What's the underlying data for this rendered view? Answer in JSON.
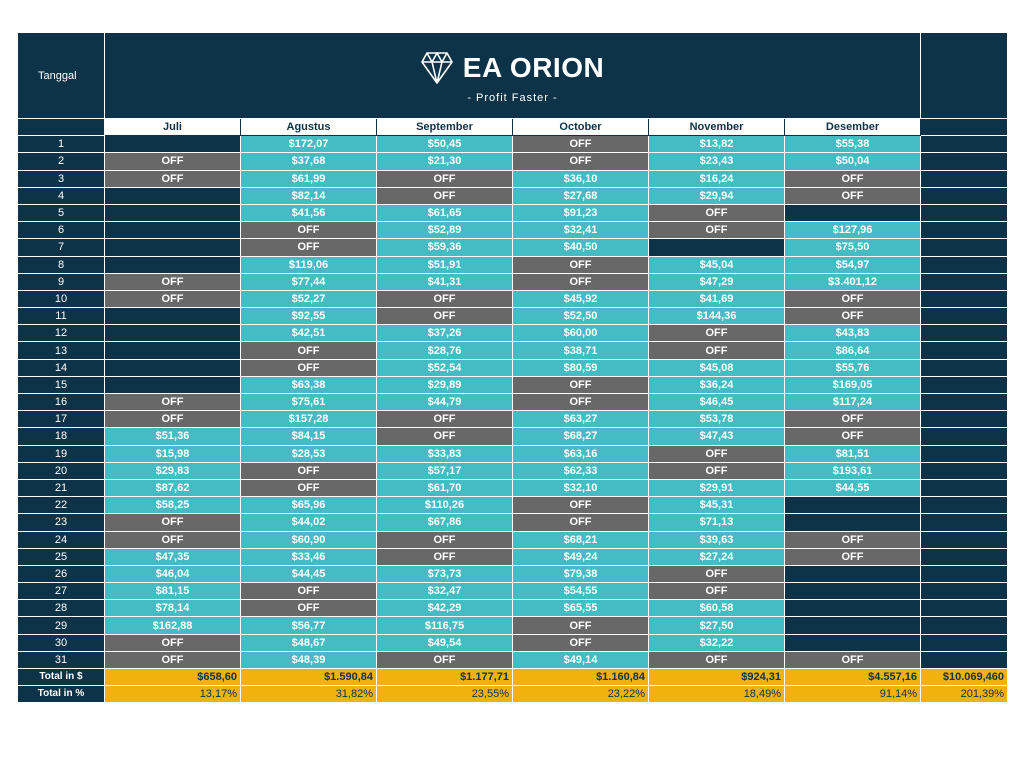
{
  "header": {
    "tanggal_label": "Tanggal",
    "brand": "EA ORION",
    "tagline": "- Profit Faster -",
    "logo_icon": "diamond-icon"
  },
  "months": [
    "Juli",
    "Agustus",
    "September",
    "October",
    "November",
    "Desember"
  ],
  "colors": {
    "navy": "#0d3349",
    "profit_cell": "#45bcc4",
    "off_cell": "#686868",
    "total_row": "#f2b20e"
  },
  "rows": [
    {
      "day": "1",
      "cells": [
        "",
        "$172,07",
        "$50,45",
        "OFF",
        "$13,82",
        "$55,38"
      ]
    },
    {
      "day": "2",
      "cells": [
        "OFF",
        "$37,68",
        "$21,30",
        "OFF",
        "$23,43",
        "$50,04"
      ]
    },
    {
      "day": "3",
      "cells": [
        "OFF",
        "$61,99",
        "OFF",
        "$36,10",
        "$16,24",
        "OFF"
      ]
    },
    {
      "day": "4",
      "cells": [
        "",
        "$82,14",
        "OFF",
        "$27,68",
        "$29,94",
        "OFF"
      ]
    },
    {
      "day": "5",
      "cells": [
        "",
        "$41,56",
        "$61,65",
        "$91,23",
        "OFF",
        ""
      ]
    },
    {
      "day": "6",
      "cells": [
        "",
        "OFF",
        "$52,89",
        "$32,41",
        "OFF",
        "$127,96"
      ]
    },
    {
      "day": "7",
      "cells": [
        "",
        "OFF",
        "$59,36",
        "$40,50",
        "",
        "$75,50"
      ]
    },
    {
      "day": "8",
      "cells": [
        "",
        "$119,06",
        "$51,91",
        "OFF",
        "$45,04",
        "$54,97"
      ]
    },
    {
      "day": "9",
      "cells": [
        "OFF",
        "$77,44",
        "$41,31",
        "OFF",
        "$47,29",
        "$3.401,12"
      ]
    },
    {
      "day": "10",
      "cells": [
        "OFF",
        "$52,27",
        "OFF",
        "$45,92",
        "$41,69",
        "OFF"
      ]
    },
    {
      "day": "11",
      "cells": [
        "",
        "$92,55",
        "OFF",
        "$52,50",
        "$144,36",
        "OFF"
      ]
    },
    {
      "day": "12",
      "cells": [
        "",
        "$42,51",
        "$37,26",
        "$60,00",
        "OFF",
        "$43,83"
      ]
    },
    {
      "day": "13",
      "cells": [
        "",
        "OFF",
        "$28,76",
        "$38,71",
        "OFF",
        "$86,64"
      ]
    },
    {
      "day": "14",
      "cells": [
        "",
        "OFF",
        "$52,54",
        "$80,59",
        "$45,08",
        "$55,76"
      ]
    },
    {
      "day": "15",
      "cells": [
        "",
        "$63,38",
        "$29,89",
        "OFF",
        "$36,24",
        "$169,05"
      ]
    },
    {
      "day": "16",
      "cells": [
        "OFF",
        "$75,61",
        "$44,79",
        "OFF",
        "$46,45",
        "$117,24"
      ]
    },
    {
      "day": "17",
      "cells": [
        "OFF",
        "$157,28",
        "OFF",
        "$63,27",
        "$53,78",
        "OFF"
      ]
    },
    {
      "day": "18",
      "cells": [
        "$51,36",
        "$84,15",
        "OFF",
        "$68,27",
        "$47,43",
        "OFF"
      ]
    },
    {
      "day": "19",
      "cells": [
        "$15,98",
        "$28,53",
        "$33,83",
        "$63,16",
        "OFF",
        "$81,51"
      ]
    },
    {
      "day": "20",
      "cells": [
        "$29,83",
        "OFF",
        "$57,17",
        "$62,33",
        "OFF",
        "$193,61"
      ]
    },
    {
      "day": "21",
      "cells": [
        "$87,62",
        "OFF",
        "$61,70",
        "$32,10",
        "$29,91",
        "$44,55"
      ]
    },
    {
      "day": "22",
      "cells": [
        "$58,25",
        "$65,96",
        "$110,26",
        "OFF",
        "$45,31",
        ""
      ]
    },
    {
      "day": "23",
      "cells": [
        "OFF",
        "$44,02",
        "$67,86",
        "OFF",
        "$71,13",
        ""
      ]
    },
    {
      "day": "24",
      "cells": [
        "OFF",
        "$60,90",
        "OFF",
        "$68,21",
        "$39,63",
        "OFF"
      ]
    },
    {
      "day": "25",
      "cells": [
        "$47,35",
        "$33,46",
        "OFF",
        "$49,24",
        "$27,24",
        "OFF"
      ]
    },
    {
      "day": "26",
      "cells": [
        "$46,04",
        "$44,45",
        "$73,73",
        "$79,38",
        "OFF",
        ""
      ]
    },
    {
      "day": "27",
      "cells": [
        "$81,15",
        "OFF",
        "$32,47",
        "$54,55",
        "OFF",
        ""
      ]
    },
    {
      "day": "28",
      "cells": [
        "$78,14",
        "OFF",
        "$42,29",
        "$65,55",
        "$60,58",
        ""
      ]
    },
    {
      "day": "29",
      "cells": [
        "$162,88",
        "$56,77",
        "$116,75",
        "OFF",
        "$27,50",
        ""
      ]
    },
    {
      "day": "30",
      "cells": [
        "OFF",
        "$48,67",
        "$49,54",
        "OFF",
        "$32,22",
        ""
      ]
    },
    {
      "day": "31",
      "cells": [
        "OFF",
        "$48,39",
        "OFF",
        "$49,14",
        "OFF",
        "OFF"
      ]
    }
  ],
  "totals": {
    "label": "Total in $",
    "values": [
      "$658,60",
      "$1.590,84",
      "$1.177,71",
      "$1.160,84",
      "$924,31",
      "$4.557,16"
    ],
    "grand": "$10.069,460"
  },
  "percent": {
    "label": "Total in %",
    "values": [
      "13,17%",
      "31,82%",
      "23,55%",
      "23,22%",
      "18,49%",
      "91,14%"
    ],
    "grand": "201,39%"
  }
}
